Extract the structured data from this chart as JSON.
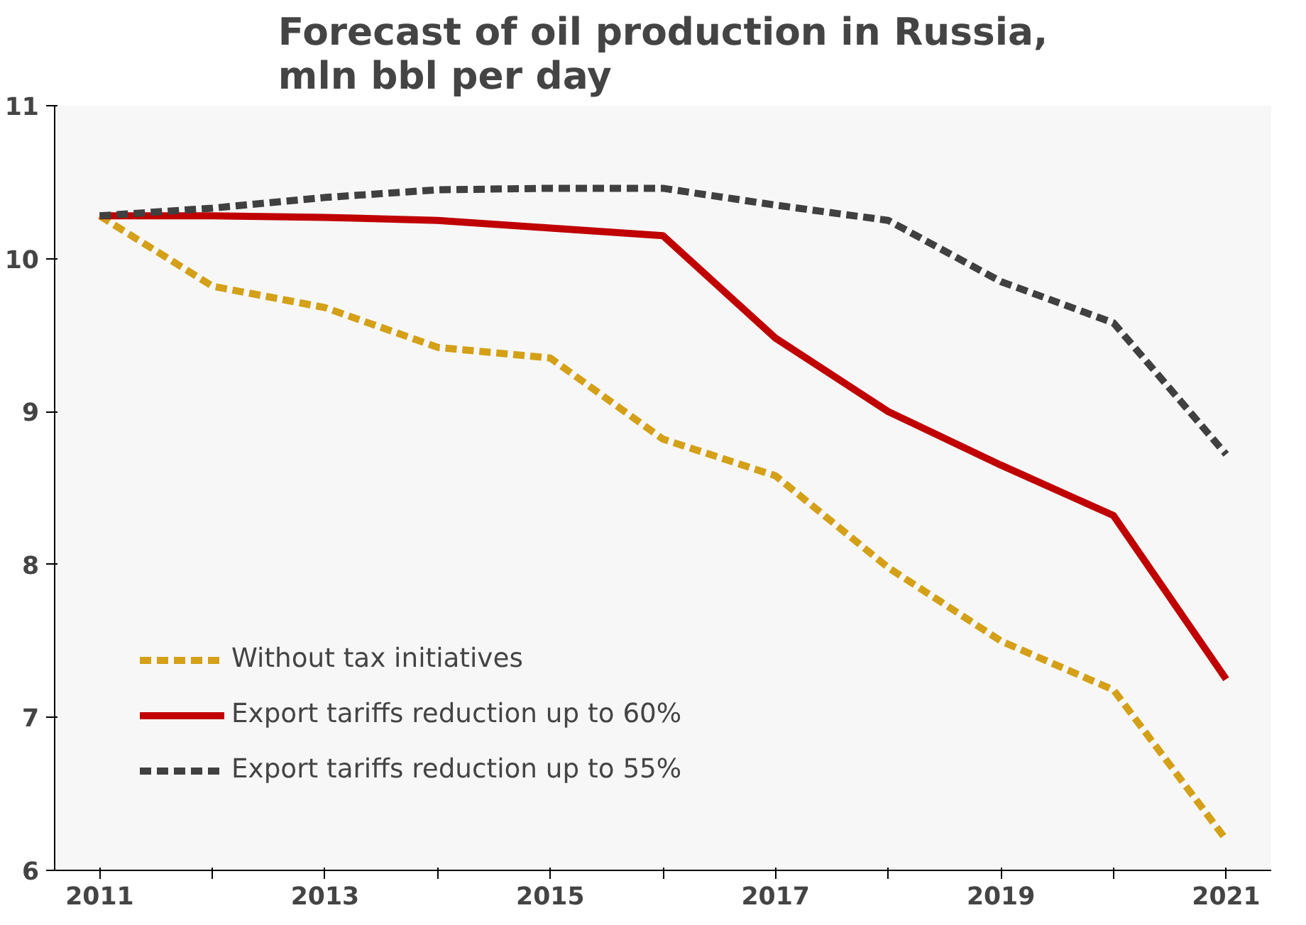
{
  "chart_data": {
    "type": "line",
    "title": "Forecast of oil production in Russia,\nmln bbl per day",
    "x": [
      2011,
      2012,
      2013,
      2014,
      2015,
      2016,
      2017,
      2018,
      2019,
      2020,
      2021
    ],
    "series": [
      {
        "name": "Without tax initiatives",
        "color": "#d4a017",
        "line_style": "dashed",
        "values": [
          10.28,
          9.82,
          9.68,
          9.42,
          9.35,
          8.82,
          8.58,
          7.98,
          7.5,
          7.18,
          6.2
        ]
      },
      {
        "name": "Export tariffs reduction up to 60%",
        "color": "#c00000",
        "line_style": "solid",
        "values": [
          10.28,
          10.28,
          10.27,
          10.25,
          10.2,
          10.15,
          9.48,
          9.0,
          8.65,
          8.32,
          7.25
        ]
      },
      {
        "name": "Export tariffs reduction up to 55%",
        "color": "#404040",
        "line_style": "dashed",
        "values": [
          10.28,
          10.33,
          10.4,
          10.45,
          10.46,
          10.46,
          10.35,
          10.25,
          9.85,
          9.58,
          8.72
        ]
      }
    ],
    "xlim": [
      2010.6,
      2021.4
    ],
    "xticks": [
      2011,
      {
        "value": 2012,
        "label": null
      },
      2013,
      {
        "value": 2014,
        "label": null
      },
      2015,
      {
        "value": 2016,
        "label": null
      },
      2017,
      {
        "value": 2018,
        "label": null
      },
      2019,
      {
        "value": 2020,
        "label": null
      },
      2021
    ],
    "ylim": [
      6,
      11
    ],
    "yticks": [
      6,
      7,
      8,
      9,
      10,
      11
    ],
    "grid": false,
    "legend": "bottom left",
    "marker": "none"
  }
}
